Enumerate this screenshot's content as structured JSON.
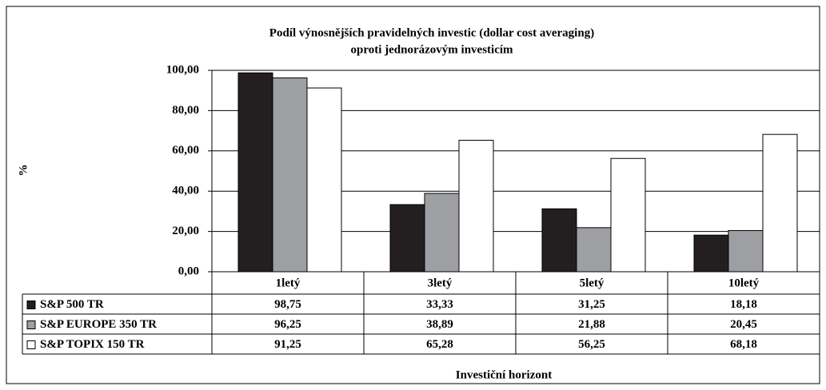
{
  "chart_data": {
    "type": "bar",
    "title": [
      "Podíl výnosnějších pravidelných investic (dollar cost averaging)",
      "oproti jednorázovým investicím"
    ],
    "y_label": "%",
    "x_label": "Investiční horizont",
    "categories": [
      "1letý",
      "3letý",
      "5letý",
      "10letý"
    ],
    "series": [
      {
        "name": "S&P 500 TR",
        "color": "#231f20",
        "values": [
          98.75,
          33.33,
          31.25,
          18.18
        ],
        "value_labels": [
          "98,75",
          "33,33",
          "31,25",
          "18,18"
        ]
      },
      {
        "name": "S&P EUROPE 350 TR",
        "color": "#9d9fa2",
        "values": [
          96.25,
          38.89,
          21.88,
          20.45
        ],
        "value_labels": [
          "96,25",
          "38,89",
          "21,88",
          "20,45"
        ]
      },
      {
        "name": "S&P TOPIX 150 TR",
        "color": "#ffffff",
        "values": [
          91.25,
          65.28,
          56.25,
          68.18
        ],
        "value_labels": [
          "91,25",
          "65,28",
          "56,25",
          "68,18"
        ]
      }
    ],
    "ylim": [
      0,
      100
    ],
    "yticks": [
      {
        "value": 0,
        "label": "0,00"
      },
      {
        "value": 20,
        "label": "20,00"
      },
      {
        "value": 40,
        "label": "40,00"
      },
      {
        "value": 60,
        "label": "60,00"
      },
      {
        "value": 80,
        "label": "80,00"
      },
      {
        "value": 100,
        "label": "100,00"
      }
    ],
    "grid": true
  }
}
